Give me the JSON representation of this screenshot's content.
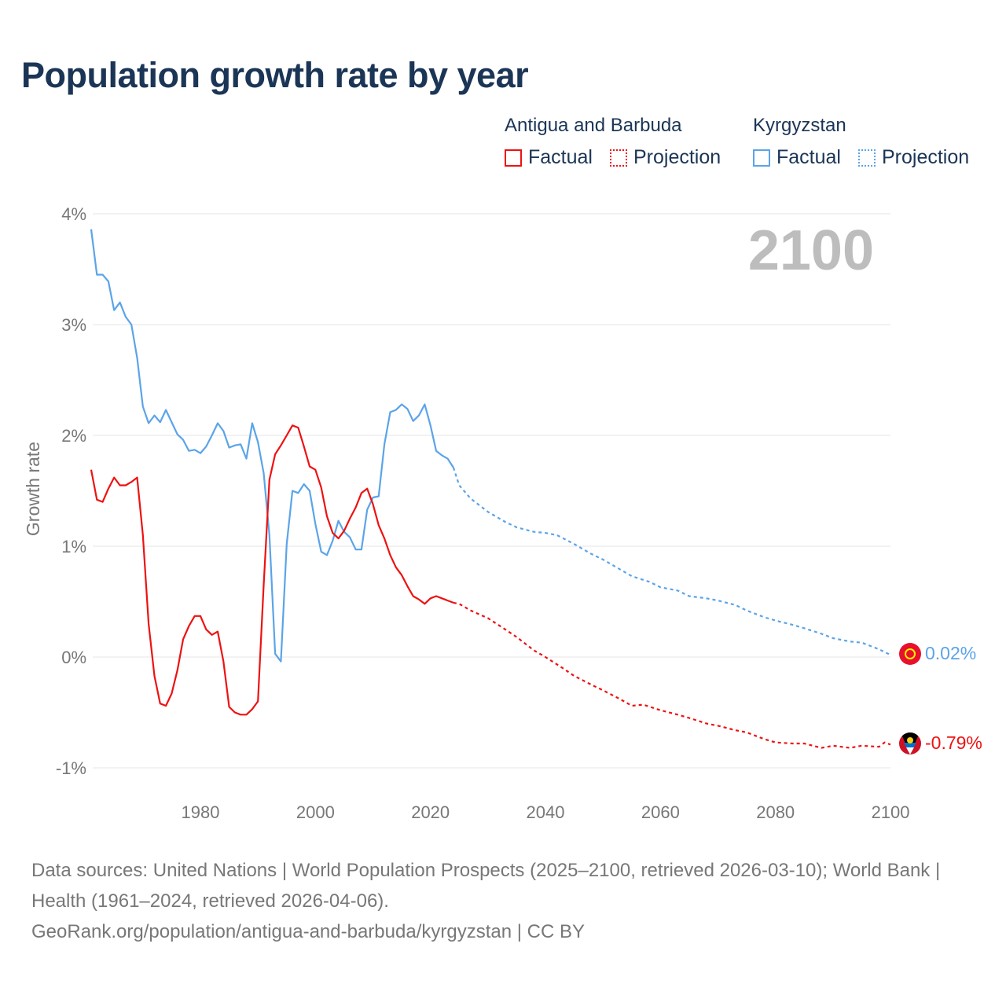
{
  "title": "Population growth rate by year",
  "legend": {
    "groups": [
      {
        "name": "Antigua and Barbuda",
        "color": "#ee1111",
        "factual": "Factual",
        "projection": "Projection"
      },
      {
        "name": "Kyrgyzstan",
        "color": "#5ba4e8",
        "factual": "Factual",
        "projection": "Projection"
      }
    ]
  },
  "current_year": "2100",
  "end_labels": {
    "kyrgyzstan": "0.02%",
    "antigua": "-0.79%"
  },
  "footer": {
    "line1": "Data sources: United Nations | World Population Prospects (2025–2100, retrieved 2026-03-10); World Bank | Health (1961–2024, retrieved 2026-04-06).",
    "line2": "GeoRank.org/population/antigua-and-barbuda/kyrgyzstan | CC BY"
  },
  "chart_data": {
    "type": "line",
    "title": "Population growth rate by year",
    "ylabel": "Growth rate",
    "xlabel": "",
    "xlim": [
      1961,
      2100
    ],
    "ylim": [
      -1.2,
      4.1
    ],
    "yticks": [
      -1,
      0,
      1,
      2,
      3,
      4
    ],
    "ytick_labels": [
      "-1%",
      "0%",
      "1%",
      "2%",
      "3%",
      "4%"
    ],
    "xticks": [
      1980,
      2000,
      2020,
      2040,
      2060,
      2080,
      2100
    ],
    "xtick_labels": [
      "1980",
      "2000",
      "2020",
      "2040",
      "2060",
      "2080",
      "2100"
    ],
    "grid": true,
    "series": [
      {
        "name": "Kyrgyzstan Factual",
        "color": "#5ba4e8",
        "dashed": false,
        "x": [
          1961,
          1962,
          1963,
          1964,
          1965,
          1966,
          1967,
          1968,
          1969,
          1970,
          1971,
          1972,
          1973,
          1974,
          1975,
          1976,
          1977,
          1978,
          1979,
          1980,
          1981,
          1982,
          1983,
          1984,
          1985,
          1986,
          1987,
          1988,
          1989,
          1990,
          1991,
          1992,
          1993,
          1994,
          1995,
          1996,
          1997,
          1998,
          1999,
          2000,
          2001,
          2002,
          2003,
          2004,
          2005,
          2006,
          2007,
          2008,
          2009,
          2010,
          2011,
          2012,
          2013,
          2014,
          2015,
          2016,
          2017,
          2018,
          2019,
          2020,
          2021,
          2022,
          2023,
          2024
        ],
        "y": [
          3.86,
          3.45,
          3.45,
          3.39,
          3.13,
          3.2,
          3.07,
          3.0,
          2.7,
          2.26,
          2.11,
          2.18,
          2.12,
          2.23,
          2.12,
          2.01,
          1.96,
          1.86,
          1.87,
          1.84,
          1.9,
          2.0,
          2.11,
          2.04,
          1.89,
          1.91,
          1.92,
          1.79,
          2.11,
          1.94,
          1.66,
          1.1,
          0.03,
          -0.04,
          1.02,
          1.5,
          1.48,
          1.56,
          1.5,
          1.2,
          0.95,
          0.92,
          1.05,
          1.23,
          1.13,
          1.08,
          0.97,
          0.97,
          1.33,
          1.44,
          1.45,
          1.92,
          2.21,
          2.23,
          2.28,
          2.24,
          2.13,
          2.18,
          2.28,
          2.09,
          1.86,
          1.82,
          1.79,
          1.71
        ]
      },
      {
        "name": "Kyrgyzstan Projection",
        "color": "#5ba4e8",
        "dashed": true,
        "x": [
          2024,
          2025,
          2027,
          2030,
          2033,
          2035,
          2038,
          2040,
          2042,
          2045,
          2048,
          2050,
          2053,
          2055,
          2058,
          2060,
          2063,
          2065,
          2068,
          2070,
          2073,
          2075,
          2078,
          2080,
          2083,
          2085,
          2088,
          2090,
          2093,
          2095,
          2098,
          2100
        ],
        "y": [
          1.71,
          1.55,
          1.43,
          1.31,
          1.22,
          1.17,
          1.13,
          1.12,
          1.1,
          1.02,
          0.93,
          0.88,
          0.79,
          0.73,
          0.68,
          0.63,
          0.6,
          0.55,
          0.53,
          0.51,
          0.47,
          0.42,
          0.36,
          0.33,
          0.29,
          0.26,
          0.21,
          0.17,
          0.14,
          0.13,
          0.07,
          0.02
        ]
      },
      {
        "name": "Antigua and Barbuda Factual",
        "color": "#ee1111",
        "dashed": false,
        "x": [
          1961,
          1962,
          1963,
          1964,
          1965,
          1966,
          1967,
          1968,
          1969,
          1970,
          1971,
          1972,
          1973,
          1974,
          1975,
          1976,
          1977,
          1978,
          1979,
          1980,
          1981,
          1982,
          1983,
          1984,
          1985,
          1986,
          1987,
          1988,
          1989,
          1990,
          1991,
          1992,
          1993,
          1994,
          1995,
          1996,
          1997,
          1998,
          1999,
          2000,
          2001,
          2002,
          2003,
          2004,
          2005,
          2006,
          2007,
          2008,
          2009,
          2010,
          2011,
          2012,
          2013,
          2014,
          2015,
          2016,
          2017,
          2018,
          2019,
          2020,
          2021,
          2022,
          2023,
          2024
        ],
        "y": [
          1.69,
          1.42,
          1.4,
          1.52,
          1.62,
          1.55,
          1.55,
          1.58,
          1.62,
          1.1,
          0.3,
          -0.17,
          -0.42,
          -0.44,
          -0.33,
          -0.12,
          0.16,
          0.28,
          0.37,
          0.37,
          0.25,
          0.2,
          0.23,
          -0.04,
          -0.45,
          -0.5,
          -0.52,
          -0.52,
          -0.47,
          -0.4,
          0.65,
          1.6,
          1.83,
          1.91,
          2.0,
          2.09,
          2.07,
          1.9,
          1.72,
          1.69,
          1.53,
          1.27,
          1.12,
          1.07,
          1.14,
          1.25,
          1.35,
          1.48,
          1.52,
          1.38,
          1.19,
          1.07,
          0.92,
          0.81,
          0.74,
          0.64,
          0.55,
          0.52,
          0.48,
          0.53,
          0.55,
          0.53,
          0.51,
          0.49
        ]
      },
      {
        "name": "Antigua and Barbuda Projection",
        "color": "#ee1111",
        "dashed": true,
        "x": [
          2024,
          2025,
          2027,
          2030,
          2033,
          2035,
          2038,
          2040,
          2043,
          2045,
          2048,
          2050,
          2053,
          2055,
          2057,
          2060,
          2063,
          2065,
          2068,
          2070,
          2073,
          2075,
          2078,
          2080,
          2083,
          2085,
          2088,
          2090,
          2093,
          2095,
          2098,
          2099,
          2100
        ],
        "y": [
          0.49,
          0.48,
          0.42,
          0.35,
          0.25,
          0.18,
          0.06,
          0.0,
          -0.1,
          -0.17,
          -0.25,
          -0.3,
          -0.38,
          -0.44,
          -0.43,
          -0.48,
          -0.52,
          -0.55,
          -0.6,
          -0.62,
          -0.66,
          -0.68,
          -0.74,
          -0.77,
          -0.78,
          -0.78,
          -0.82,
          -0.8,
          -0.82,
          -0.8,
          -0.81,
          -0.77,
          -0.79
        ]
      }
    ]
  }
}
